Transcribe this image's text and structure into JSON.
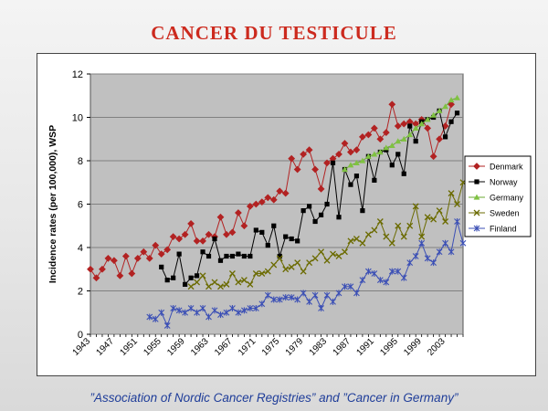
{
  "slide": {
    "title": "CANCER DU TESTICULE",
    "source": "”Association of Nordic Cancer Registries” and ”Cancer in Germany”"
  },
  "chart_data": {
    "type": "line",
    "title": "",
    "xlabel": "",
    "ylabel": "Incidence rates (per 100,000), WSP",
    "xlim": [
      1943,
      2006
    ],
    "ylim": [
      0,
      12
    ],
    "xticks": [
      1943,
      1947,
      1951,
      1955,
      1959,
      1963,
      1967,
      1971,
      1975,
      1979,
      1983,
      1987,
      1991,
      1995,
      1999,
      2003
    ],
    "yticks": [
      0,
      2,
      4,
      6,
      8,
      10,
      12
    ],
    "grid": true,
    "plot_background": "#c0c0c0",
    "legend_position": "right",
    "series": [
      {
        "name": "Denmark",
        "color": "#b22222",
        "marker": "diamond",
        "x": [
          1943,
          1944,
          1945,
          1946,
          1947,
          1948,
          1949,
          1950,
          1951,
          1952,
          1953,
          1954,
          1955,
          1956,
          1957,
          1958,
          1959,
          1960,
          1961,
          1962,
          1963,
          1964,
          1965,
          1966,
          1967,
          1968,
          1969,
          1970,
          1971,
          1972,
          1973,
          1974,
          1975,
          1976,
          1977,
          1978,
          1979,
          1980,
          1981,
          1982,
          1983,
          1984,
          1985,
          1986,
          1987,
          1988,
          1989,
          1990,
          1991,
          1992,
          1993,
          1994,
          1995,
          1996,
          1997,
          1998,
          1999,
          2000,
          2001,
          2002,
          2003,
          2004
        ],
        "y": [
          3.0,
          2.6,
          3.0,
          3.5,
          3.4,
          2.7,
          3.6,
          2.8,
          3.5,
          3.8,
          3.5,
          4.1,
          3.7,
          3.9,
          4.5,
          4.4,
          4.6,
          5.1,
          4.3,
          4.3,
          4.6,
          4.5,
          5.4,
          4.6,
          4.7,
          5.6,
          5.0,
          5.9,
          6.0,
          6.1,
          6.3,
          6.2,
          6.6,
          6.5,
          8.1,
          7.6,
          8.3,
          8.5,
          7.6,
          6.7,
          7.9,
          8.1,
          8.3,
          8.8,
          8.4,
          8.5,
          9.1,
          9.2,
          9.5,
          9.0,
          9.3,
          10.6,
          9.6,
          9.7,
          9.8,
          9.7,
          9.9,
          9.5,
          8.2,
          9.0,
          9.6,
          10.6
        ]
      },
      {
        "name": "Norway",
        "color": "#000000",
        "marker": "square",
        "x": [
          1955,
          1956,
          1957,
          1958,
          1959,
          1960,
          1961,
          1962,
          1963,
          1964,
          1965,
          1966,
          1967,
          1968,
          1969,
          1970,
          1971,
          1972,
          1973,
          1974,
          1975,
          1976,
          1977,
          1978,
          1979,
          1980,
          1981,
          1982,
          1983,
          1984,
          1985,
          1986,
          1987,
          1988,
          1989,
          1990,
          1991,
          1992,
          1993,
          1994,
          1995,
          1996,
          1997,
          1998,
          1999,
          2000,
          2001,
          2002,
          2003,
          2004,
          2005
        ],
        "y": [
          3.1,
          2.5,
          2.6,
          3.7,
          2.3,
          2.6,
          2.7,
          3.8,
          3.6,
          4.4,
          3.4,
          3.6,
          3.6,
          3.7,
          3.6,
          3.6,
          4.8,
          4.7,
          4.1,
          5.0,
          3.6,
          4.5,
          4.4,
          4.3,
          5.7,
          5.9,
          5.2,
          5.5,
          6.0,
          7.9,
          5.4,
          7.6,
          6.9,
          7.3,
          5.7,
          8.2,
          7.1,
          8.4,
          8.5,
          7.8,
          8.3,
          7.4,
          9.6,
          8.9,
          9.8,
          9.9,
          10.0,
          10.3,
          9.1,
          9.8,
          10.2
        ]
      },
      {
        "name": "Germany",
        "color": "#7fc241",
        "marker": "triangle",
        "x": [
          1986,
          1987,
          1988,
          1989,
          1990,
          1991,
          1992,
          1993,
          1994,
          1995,
          1996,
          1997,
          1998,
          1999,
          2000,
          2001,
          2002,
          2003,
          2004,
          2005
        ],
        "y": [
          7.6,
          7.8,
          7.9,
          8.0,
          8.2,
          8.3,
          8.4,
          8.6,
          8.7,
          8.9,
          9.0,
          9.2,
          9.5,
          9.7,
          9.9,
          10.1,
          10.3,
          10.5,
          10.8,
          10.9
        ]
      },
      {
        "name": "Sweden",
        "color": "#6b6b00",
        "marker": "x",
        "x": [
          1960,
          1961,
          1962,
          1963,
          1964,
          1965,
          1966,
          1967,
          1968,
          1969,
          1970,
          1971,
          1972,
          1973,
          1974,
          1975,
          1976,
          1977,
          1978,
          1979,
          1980,
          1981,
          1982,
          1983,
          1984,
          1985,
          1986,
          1987,
          1988,
          1989,
          1990,
          1991,
          1992,
          1993,
          1994,
          1995,
          1996,
          1997,
          1998,
          1999,
          2000,
          2001,
          2002,
          2003,
          2004,
          2005,
          2006
        ],
        "y": [
          2.2,
          2.4,
          2.7,
          2.2,
          2.4,
          2.2,
          2.3,
          2.8,
          2.4,
          2.5,
          2.3,
          2.8,
          2.8,
          2.9,
          3.2,
          3.5,
          3.0,
          3.1,
          3.3,
          2.9,
          3.3,
          3.5,
          3.8,
          3.4,
          3.7,
          3.6,
          3.8,
          4.3,
          4.4,
          4.2,
          4.6,
          4.8,
          5.2,
          4.5,
          4.2,
          5.0,
          4.5,
          5.0,
          5.9,
          4.5,
          5.4,
          5.3,
          5.7,
          5.2,
          6.5,
          6.0,
          7.0
        ]
      },
      {
        "name": "Finland",
        "color": "#3b4fb5",
        "marker": "star",
        "x": [
          1953,
          1954,
          1955,
          1956,
          1957,
          1958,
          1959,
          1960,
          1961,
          1962,
          1963,
          1964,
          1965,
          1966,
          1967,
          1968,
          1969,
          1970,
          1971,
          1972,
          1973,
          1974,
          1975,
          1976,
          1977,
          1978,
          1979,
          1980,
          1981,
          1982,
          1983,
          1984,
          1985,
          1986,
          1987,
          1988,
          1989,
          1990,
          1991,
          1992,
          1993,
          1994,
          1995,
          1996,
          1997,
          1998,
          1999,
          2000,
          2001,
          2002,
          2003,
          2004,
          2005,
          2006
        ],
        "y": [
          0.8,
          0.7,
          1.0,
          0.4,
          1.2,
          1.1,
          1.0,
          1.2,
          1.0,
          1.2,
          0.8,
          1.1,
          0.9,
          1.0,
          1.2,
          1.0,
          1.1,
          1.2,
          1.2,
          1.4,
          1.8,
          1.6,
          1.6,
          1.7,
          1.7,
          1.6,
          1.9,
          1.5,
          1.8,
          1.2,
          1.8,
          1.5,
          1.9,
          2.2,
          2.2,
          1.9,
          2.5,
          2.9,
          2.8,
          2.5,
          2.4,
          2.9,
          2.9,
          2.6,
          3.3,
          3.6,
          4.2,
          3.5,
          3.3,
          3.8,
          4.2,
          3.8,
          5.2,
          4.2
        ]
      }
    ]
  }
}
